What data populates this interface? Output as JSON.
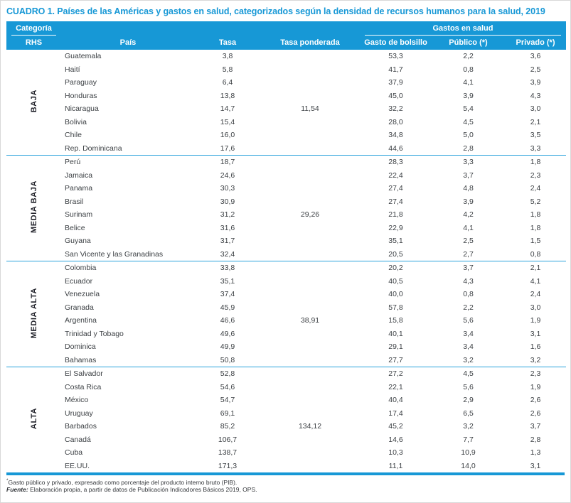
{
  "title": "CUADRO 1. Países de las Américas y gastos en salud, categorizados según la densidad de recursos humanos para la salud, 2019",
  "colors": {
    "accent_blue": "#1798d6",
    "body_text": "#3c4044"
  },
  "header": {
    "categoria": "Categoría",
    "rhs": "RHS",
    "pais": "País",
    "tasa": "Tasa",
    "tasa_ponderada": "Tasa ponderada",
    "gastos_en_salud": "Gastos en salud",
    "gasto_bolsillo": "Gasto de bolsillo",
    "publico": "Público (*)",
    "privado": "Privado (*)"
  },
  "groups": [
    {
      "label": "BAJA",
      "rows": [
        {
          "pais": "Guatemala",
          "tasa": "3,8",
          "tasa_ponderada": "",
          "gasto_bolsillo": "53,3",
          "publico": "2,2",
          "privado": "3,6"
        },
        {
          "pais": "Haití",
          "tasa": "5,8",
          "tasa_ponderada": "",
          "gasto_bolsillo": "41,7",
          "publico": "0,8",
          "privado": "2,5"
        },
        {
          "pais": "Paraguay",
          "tasa": "6,4",
          "tasa_ponderada": "",
          "gasto_bolsillo": "37,9",
          "publico": "4,1",
          "privado": "3,9"
        },
        {
          "pais": "Honduras",
          "tasa": "13,8",
          "tasa_ponderada": "",
          "gasto_bolsillo": "45,0",
          "publico": "3,9",
          "privado": "4,3"
        },
        {
          "pais": "Nicaragua",
          "tasa": "14,7",
          "tasa_ponderada": "11,54",
          "gasto_bolsillo": "32,2",
          "publico": "5,4",
          "privado": "3,0"
        },
        {
          "pais": "Bolivia",
          "tasa": "15,4",
          "tasa_ponderada": "",
          "gasto_bolsillo": "28,0",
          "publico": "4,5",
          "privado": "2,1"
        },
        {
          "pais": "Chile",
          "tasa": "16,0",
          "tasa_ponderada": "",
          "gasto_bolsillo": "34,8",
          "publico": "5,0",
          "privado": "3,5"
        },
        {
          "pais": "Rep. Dominicana",
          "tasa": "17,6",
          "tasa_ponderada": "",
          "gasto_bolsillo": "44,6",
          "publico": "2,8",
          "privado": "3,3"
        }
      ]
    },
    {
      "label": "MEDIA BAJA",
      "rows": [
        {
          "pais": "Perú",
          "tasa": "18,7",
          "tasa_ponderada": "",
          "gasto_bolsillo": "28,3",
          "publico": "3,3",
          "privado": "1,8"
        },
        {
          "pais": "Jamaica",
          "tasa": "24,6",
          "tasa_ponderada": "",
          "gasto_bolsillo": "22,4",
          "publico": "3,7",
          "privado": "2,3"
        },
        {
          "pais": "Panama",
          "tasa": "30,3",
          "tasa_ponderada": "",
          "gasto_bolsillo": "27,4",
          "publico": "4,8",
          "privado": "2,4"
        },
        {
          "pais": "Brasil",
          "tasa": "30,9",
          "tasa_ponderada": "",
          "gasto_bolsillo": "27,4",
          "publico": "3,9",
          "privado": "5,2"
        },
        {
          "pais": "Surinam",
          "tasa": "31,2",
          "tasa_ponderada": "29,26",
          "gasto_bolsillo": "21,8",
          "publico": "4,2",
          "privado": "1,8"
        },
        {
          "pais": "Belice",
          "tasa": "31,6",
          "tasa_ponderada": "",
          "gasto_bolsillo": "22,9",
          "publico": "4,1",
          "privado": "1,8"
        },
        {
          "pais": "Guyana",
          "tasa": "31,7",
          "tasa_ponderada": "",
          "gasto_bolsillo": "35,1",
          "publico": "2,5",
          "privado": "1,5"
        },
        {
          "pais": "San Vicente y las Granadinas",
          "tasa": "32,4",
          "tasa_ponderada": "",
          "gasto_bolsillo": "20,5",
          "publico": "2,7",
          "privado": "0,8"
        }
      ]
    },
    {
      "label": "MEDIA ALTA",
      "rows": [
        {
          "pais": "Colombia",
          "tasa": "33,8",
          "tasa_ponderada": "",
          "gasto_bolsillo": "20,2",
          "publico": "3,7",
          "privado": "2,1"
        },
        {
          "pais": "Ecuador",
          "tasa": "35,1",
          "tasa_ponderada": "",
          "gasto_bolsillo": "40,5",
          "publico": "4,3",
          "privado": "4,1"
        },
        {
          "pais": "Venezuela",
          "tasa": "37,4",
          "tasa_ponderada": "",
          "gasto_bolsillo": "40,0",
          "publico": "0,8",
          "privado": "2,4"
        },
        {
          "pais": "Granada",
          "tasa": "45,9",
          "tasa_ponderada": "",
          "gasto_bolsillo": "57,8",
          "publico": "2,2",
          "privado": "3,0"
        },
        {
          "pais": "Argentina",
          "tasa": "46,6",
          "tasa_ponderada": "38,91",
          "gasto_bolsillo": "15,8",
          "publico": "5,6",
          "privado": "1,9"
        },
        {
          "pais": "Trinidad y Tobago",
          "tasa": "49,6",
          "tasa_ponderada": "",
          "gasto_bolsillo": "40,1",
          "publico": "3,4",
          "privado": "3,1"
        },
        {
          "pais": "Dominica",
          "tasa": "49,9",
          "tasa_ponderada": "",
          "gasto_bolsillo": "29,1",
          "publico": "3,4",
          "privado": "1,6"
        },
        {
          "pais": "Bahamas",
          "tasa": "50,8",
          "tasa_ponderada": "",
          "gasto_bolsillo": "27,7",
          "publico": "3,2",
          "privado": "3,2"
        }
      ]
    },
    {
      "label": "ALTA",
      "rows": [
        {
          "pais": "El Salvador",
          "tasa": "52,8",
          "tasa_ponderada": "",
          "gasto_bolsillo": "27,2",
          "publico": "4,5",
          "privado": "2,3"
        },
        {
          "pais": "Costa Rica",
          "tasa": "54,6",
          "tasa_ponderada": "",
          "gasto_bolsillo": "22,1",
          "publico": "5,6",
          "privado": "1,9"
        },
        {
          "pais": "México",
          "tasa": "54,7",
          "tasa_ponderada": "",
          "gasto_bolsillo": "40,4",
          "publico": "2,9",
          "privado": "2,6"
        },
        {
          "pais": "Uruguay",
          "tasa": "69,1",
          "tasa_ponderada": "",
          "gasto_bolsillo": "17,4",
          "publico": "6,5",
          "privado": "2,6"
        },
        {
          "pais": "Barbados",
          "tasa": "85,2",
          "tasa_ponderada": "134,12",
          "gasto_bolsillo": "45,2",
          "publico": "3,2",
          "privado": "3,7"
        },
        {
          "pais": "Canadá",
          "tasa": "106,7",
          "tasa_ponderada": "",
          "gasto_bolsillo": "14,6",
          "publico": "7,7",
          "privado": "2,8"
        },
        {
          "pais": "Cuba",
          "tasa": "138,7",
          "tasa_ponderada": "",
          "gasto_bolsillo": "10,3",
          "publico": "10,9",
          "privado": "1,3"
        },
        {
          "pais": "EE.UU.",
          "tasa": "171,3",
          "tasa_ponderada": "",
          "gasto_bolsillo": "11,1",
          "publico": "14,0",
          "privado": "3,1"
        }
      ]
    }
  ],
  "footnotes": {
    "note_marker": "*",
    "note1": "Gasto público y privado, expresado como porcentaje del producto interno bruto (PIB).",
    "fuente_label": "Fuente:",
    "fuente_text": "Elaboración propia, a partir de datos de Publicación Indicadores Básicos 2019, OPS."
  }
}
